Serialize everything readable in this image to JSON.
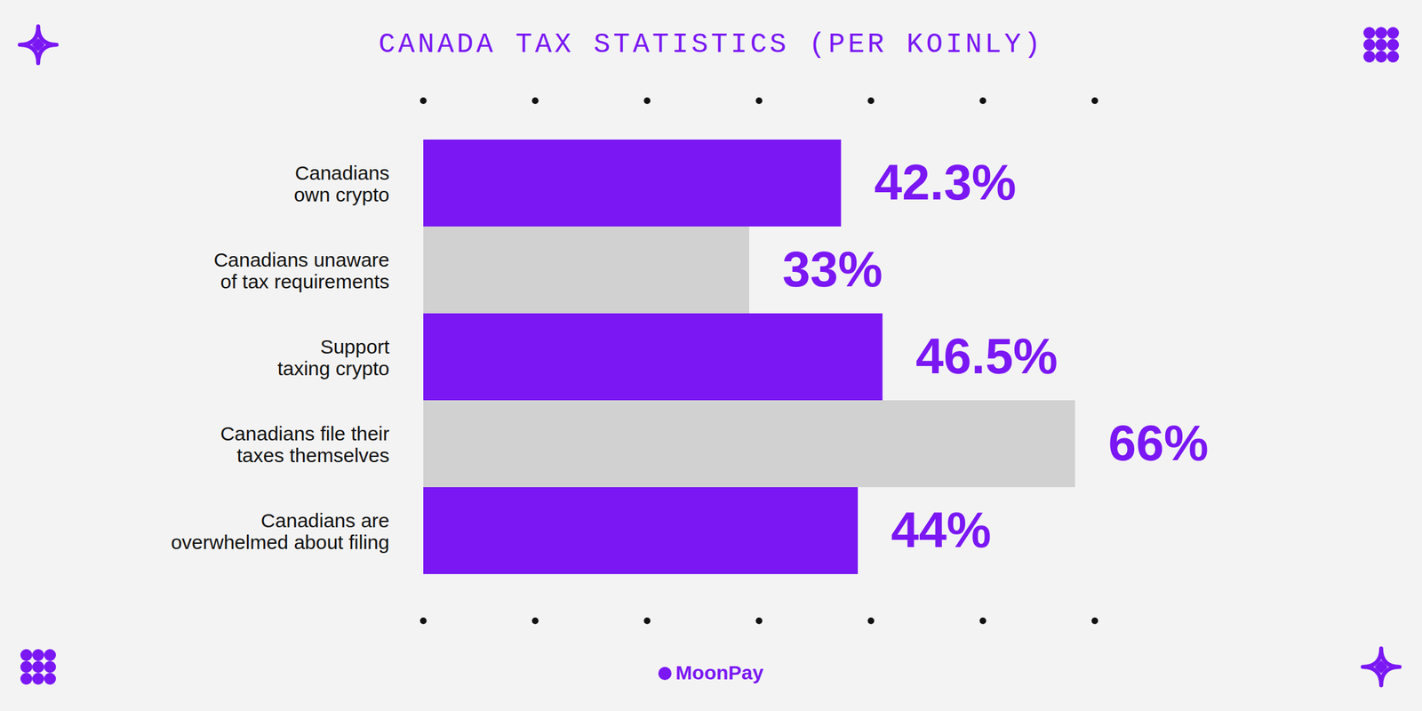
{
  "chart_data": {
    "type": "bar",
    "orientation": "horizontal",
    "title": "CANADA TAX STATISTICS (PER KOINLY)",
    "caption": "MoonPay",
    "categories": [
      "Canadians\nown crypto",
      "Canadians unaware\nof tax requirements",
      "Support\ntaxing crypto",
      "Canadians file their\ntaxes themselves",
      "Canadians are\noverwhelmed about filing"
    ],
    "values": [
      42.3,
      33,
      46.5,
      66,
      44
    ],
    "value_labels": [
      "42.3%",
      "33%",
      "46.5%",
      "66%",
      "44%"
    ],
    "colors": [
      "#7a17f3",
      "#d1d1d1",
      "#7a17f3",
      "#d1d1d1",
      "#7a17f3"
    ],
    "xlim": [
      0,
      68
    ],
    "xticks": [],
    "tick_labels": false,
    "data_labels": true,
    "grid": false
  }
}
